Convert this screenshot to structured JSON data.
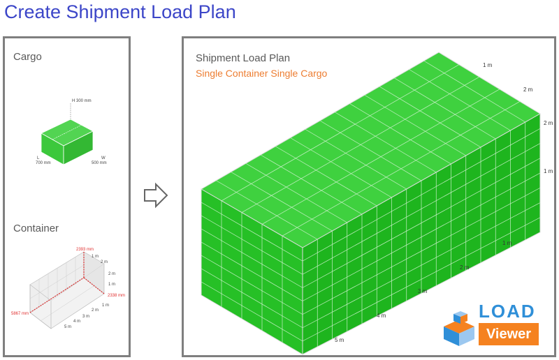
{
  "title": "Create Shipment Load Plan",
  "cargo": {
    "heading": "Cargo",
    "height_label": "H 300 mm",
    "length_label": "L",
    "length_value": "700 mm",
    "width_label": "W",
    "width_value": "500 mm",
    "color": "#3cc83c"
  },
  "container": {
    "heading": "Container",
    "height_label": "2393 mm",
    "width_label": "2338 mm",
    "length_label": "5867 mm",
    "ticks_height": [
      "1 m",
      "2 m"
    ],
    "ticks_width_top": [
      "1 m",
      "2 m"
    ],
    "ticks_width": [
      "1 m",
      "2 m"
    ],
    "ticks_length": [
      "1 m",
      "2 m",
      "3 m",
      "4 m",
      "5 m"
    ]
  },
  "arrow_icon": "arrow-right-outline-icon",
  "plan": {
    "heading": "Shipment Load Plan",
    "subtitle": "Single Container Single Cargo",
    "ticks_top": [
      "1 m",
      "2 m"
    ],
    "ticks_height": [
      "2 m",
      "1 m"
    ],
    "ticks_length": [
      "1 m",
      "2 m",
      "3 m",
      "4 m",
      "5 m"
    ],
    "fill_color": "#22c322"
  },
  "logo": {
    "word1": "LOAD",
    "word2": "Viewer",
    "blue": "#2f8fd8",
    "orange": "#f58220"
  }
}
